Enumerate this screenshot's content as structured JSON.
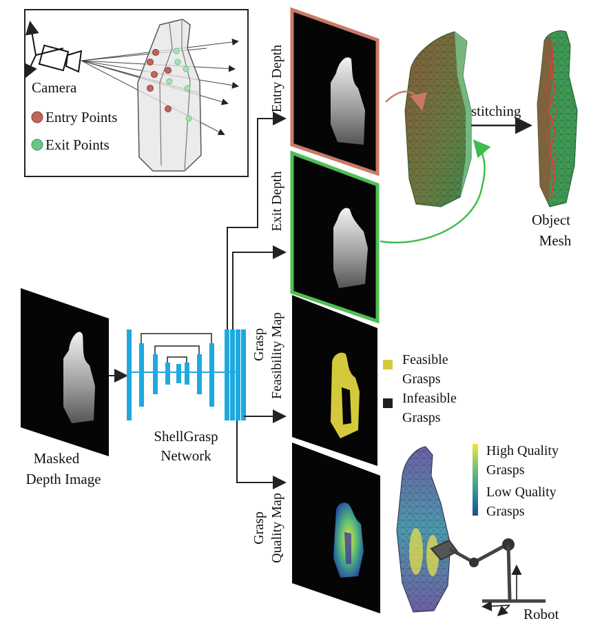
{
  "inset": {
    "camera_label": "Camera",
    "entry_label": "Entry Points",
    "exit_label": "Exit Points",
    "entry_color": "#c0655a",
    "exit_color": "#6cc48a"
  },
  "labels": {
    "entry_depth": "Entry Depth",
    "exit_depth": "Exit Depth",
    "feasibility_line1": "Grasp",
    "feasibility_line2": "Feasibility Map",
    "quality_line1": "Grasp",
    "quality_line2": "Quality Map",
    "stitching": "stitching",
    "mesh_line1": "Object",
    "mesh_line2": "Mesh",
    "masked_line1": "Masked",
    "masked_line2": "Depth Image",
    "network_line1": "ShellGrasp",
    "network_line2": "Network",
    "robot": "Robot"
  },
  "legend_feasibility": {
    "feasible_line1": "Feasible",
    "feasible_line2": "Grasps",
    "infeasible_line1": "Infeasible",
    "infeasible_line2": "Grasps",
    "feasible_color": "#d4c93a",
    "infeasible_color": "#231f20"
  },
  "legend_quality": {
    "high_line1": "High Quality",
    "high_line2": "Grasps",
    "low_line1": "Low Quality",
    "low_line2": "Grasps"
  },
  "colors": {
    "entry_frame": "#c97a66",
    "exit_frame": "#4fbf53",
    "network": "#1ea9df",
    "mesh_green": "#3f9a55",
    "mesh_brown": "#8a5a3a",
    "mesh_red": "#e33b3b"
  }
}
